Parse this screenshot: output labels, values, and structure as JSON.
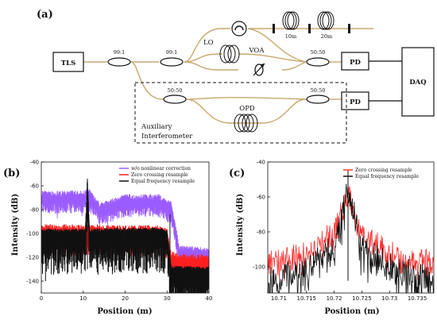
{
  "panel_a": {
    "label": "(a)",
    "tls": "TLS",
    "coupler1": "99:1",
    "coupler2": "99:1",
    "lo": "LO",
    "voa": "VOA",
    "coupler_out": "50:50",
    "pd_top": "PD",
    "pd_bottom": "PD",
    "daq": "DAQ",
    "fiber1": "10m",
    "fiber2": "20m",
    "aux_coupler1": "50:50",
    "aux_coupler2": "50:50",
    "opd": "OPD",
    "aux_title_line1": "Auxiliary",
    "aux_title_line2": "Interferometer",
    "fiber_color": "#c8a96e"
  },
  "chart_data": [
    {
      "panel": "(b)",
      "type": "line",
      "xlabel": "Position (m)",
      "ylabel": "Intensity (dB)",
      "xlim": [
        0,
        40
      ],
      "ylim": [
        -150,
        -40
      ],
      "xticks": [
        0,
        10,
        20,
        30,
        40
      ],
      "yticks": [
        -40,
        -60,
        -80,
        -100,
        -120,
        -140
      ],
      "legend_position": "top-right",
      "series": [
        {
          "name": "w/o nonlinear correction",
          "color": "#9b5cff",
          "x": [
            0,
            10.5,
            11,
            11.5,
            14,
            20,
            28,
            31,
            33,
            40
          ],
          "y": [
            -69,
            -69,
            -66,
            -68,
            -79,
            -72,
            -72,
            -78,
            -115,
            -117
          ]
        },
        {
          "name": "Zero crossing resample",
          "color": "#ff2020",
          "x": [
            0,
            20,
            28,
            30,
            31,
            33,
            40
          ],
          "y": [
            -97,
            -98,
            -98,
            -101,
            -120,
            -122,
            -123
          ]
        },
        {
          "name": "Equal frequency resample",
          "color": "#111111",
          "x": [
            0,
            10.5,
            11,
            11.5,
            20,
            28,
            30,
            31,
            40
          ],
          "y": [
            -99,
            -99,
            -54,
            -99,
            -98,
            -98,
            -100,
            -130,
            -131
          ]
        }
      ]
    },
    {
      "panel": "(c)",
      "type": "line",
      "xlabel": "Position (m)",
      "ylabel": "Intensity (dB)",
      "xlim": [
        10.708,
        10.738
      ],
      "ylim": [
        -115,
        -40
      ],
      "xticks": [
        10.71,
        10.715,
        10.72,
        10.725,
        10.73,
        10.735
      ],
      "yticks": [
        -40,
        -60,
        -80,
        -100
      ],
      "legend_position": "top-right",
      "series": [
        {
          "name": "Zero crossing resample",
          "color": "#ff3030",
          "x": [
            10.708,
            10.715,
            10.72,
            10.7225,
            10.725,
            10.73,
            10.738
          ],
          "y": [
            -98,
            -92,
            -80,
            -58,
            -80,
            -92,
            -98
          ]
        },
        {
          "name": "Equal frequency resample",
          "color": "#111111",
          "x": [
            10.708,
            10.715,
            10.72,
            10.7225,
            10.725,
            10.73,
            10.738
          ],
          "y": [
            -108,
            -100,
            -88,
            -55,
            -88,
            -100,
            -108
          ]
        }
      ]
    }
  ]
}
